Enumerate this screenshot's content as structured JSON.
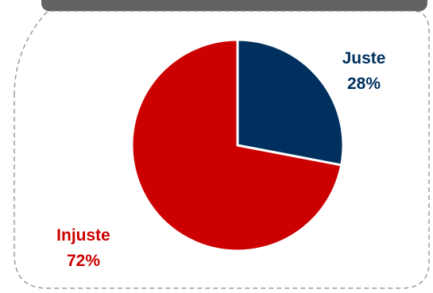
{
  "chart_data": {
    "type": "pie",
    "title": "",
    "slices": [
      {
        "label": "Juste",
        "value": 28,
        "value_label": "28%",
        "color": "#00305e"
      },
      {
        "label": "Injuste",
        "value": 72,
        "value_label": "72%",
        "color": "#cc0000"
      }
    ],
    "start_angle_deg": 0,
    "direction": "clockwise",
    "legend": "none"
  },
  "colors": {
    "title_bar": "#636366",
    "frame_border": "#9c9c9c",
    "slice_separator": "#ffffff"
  }
}
